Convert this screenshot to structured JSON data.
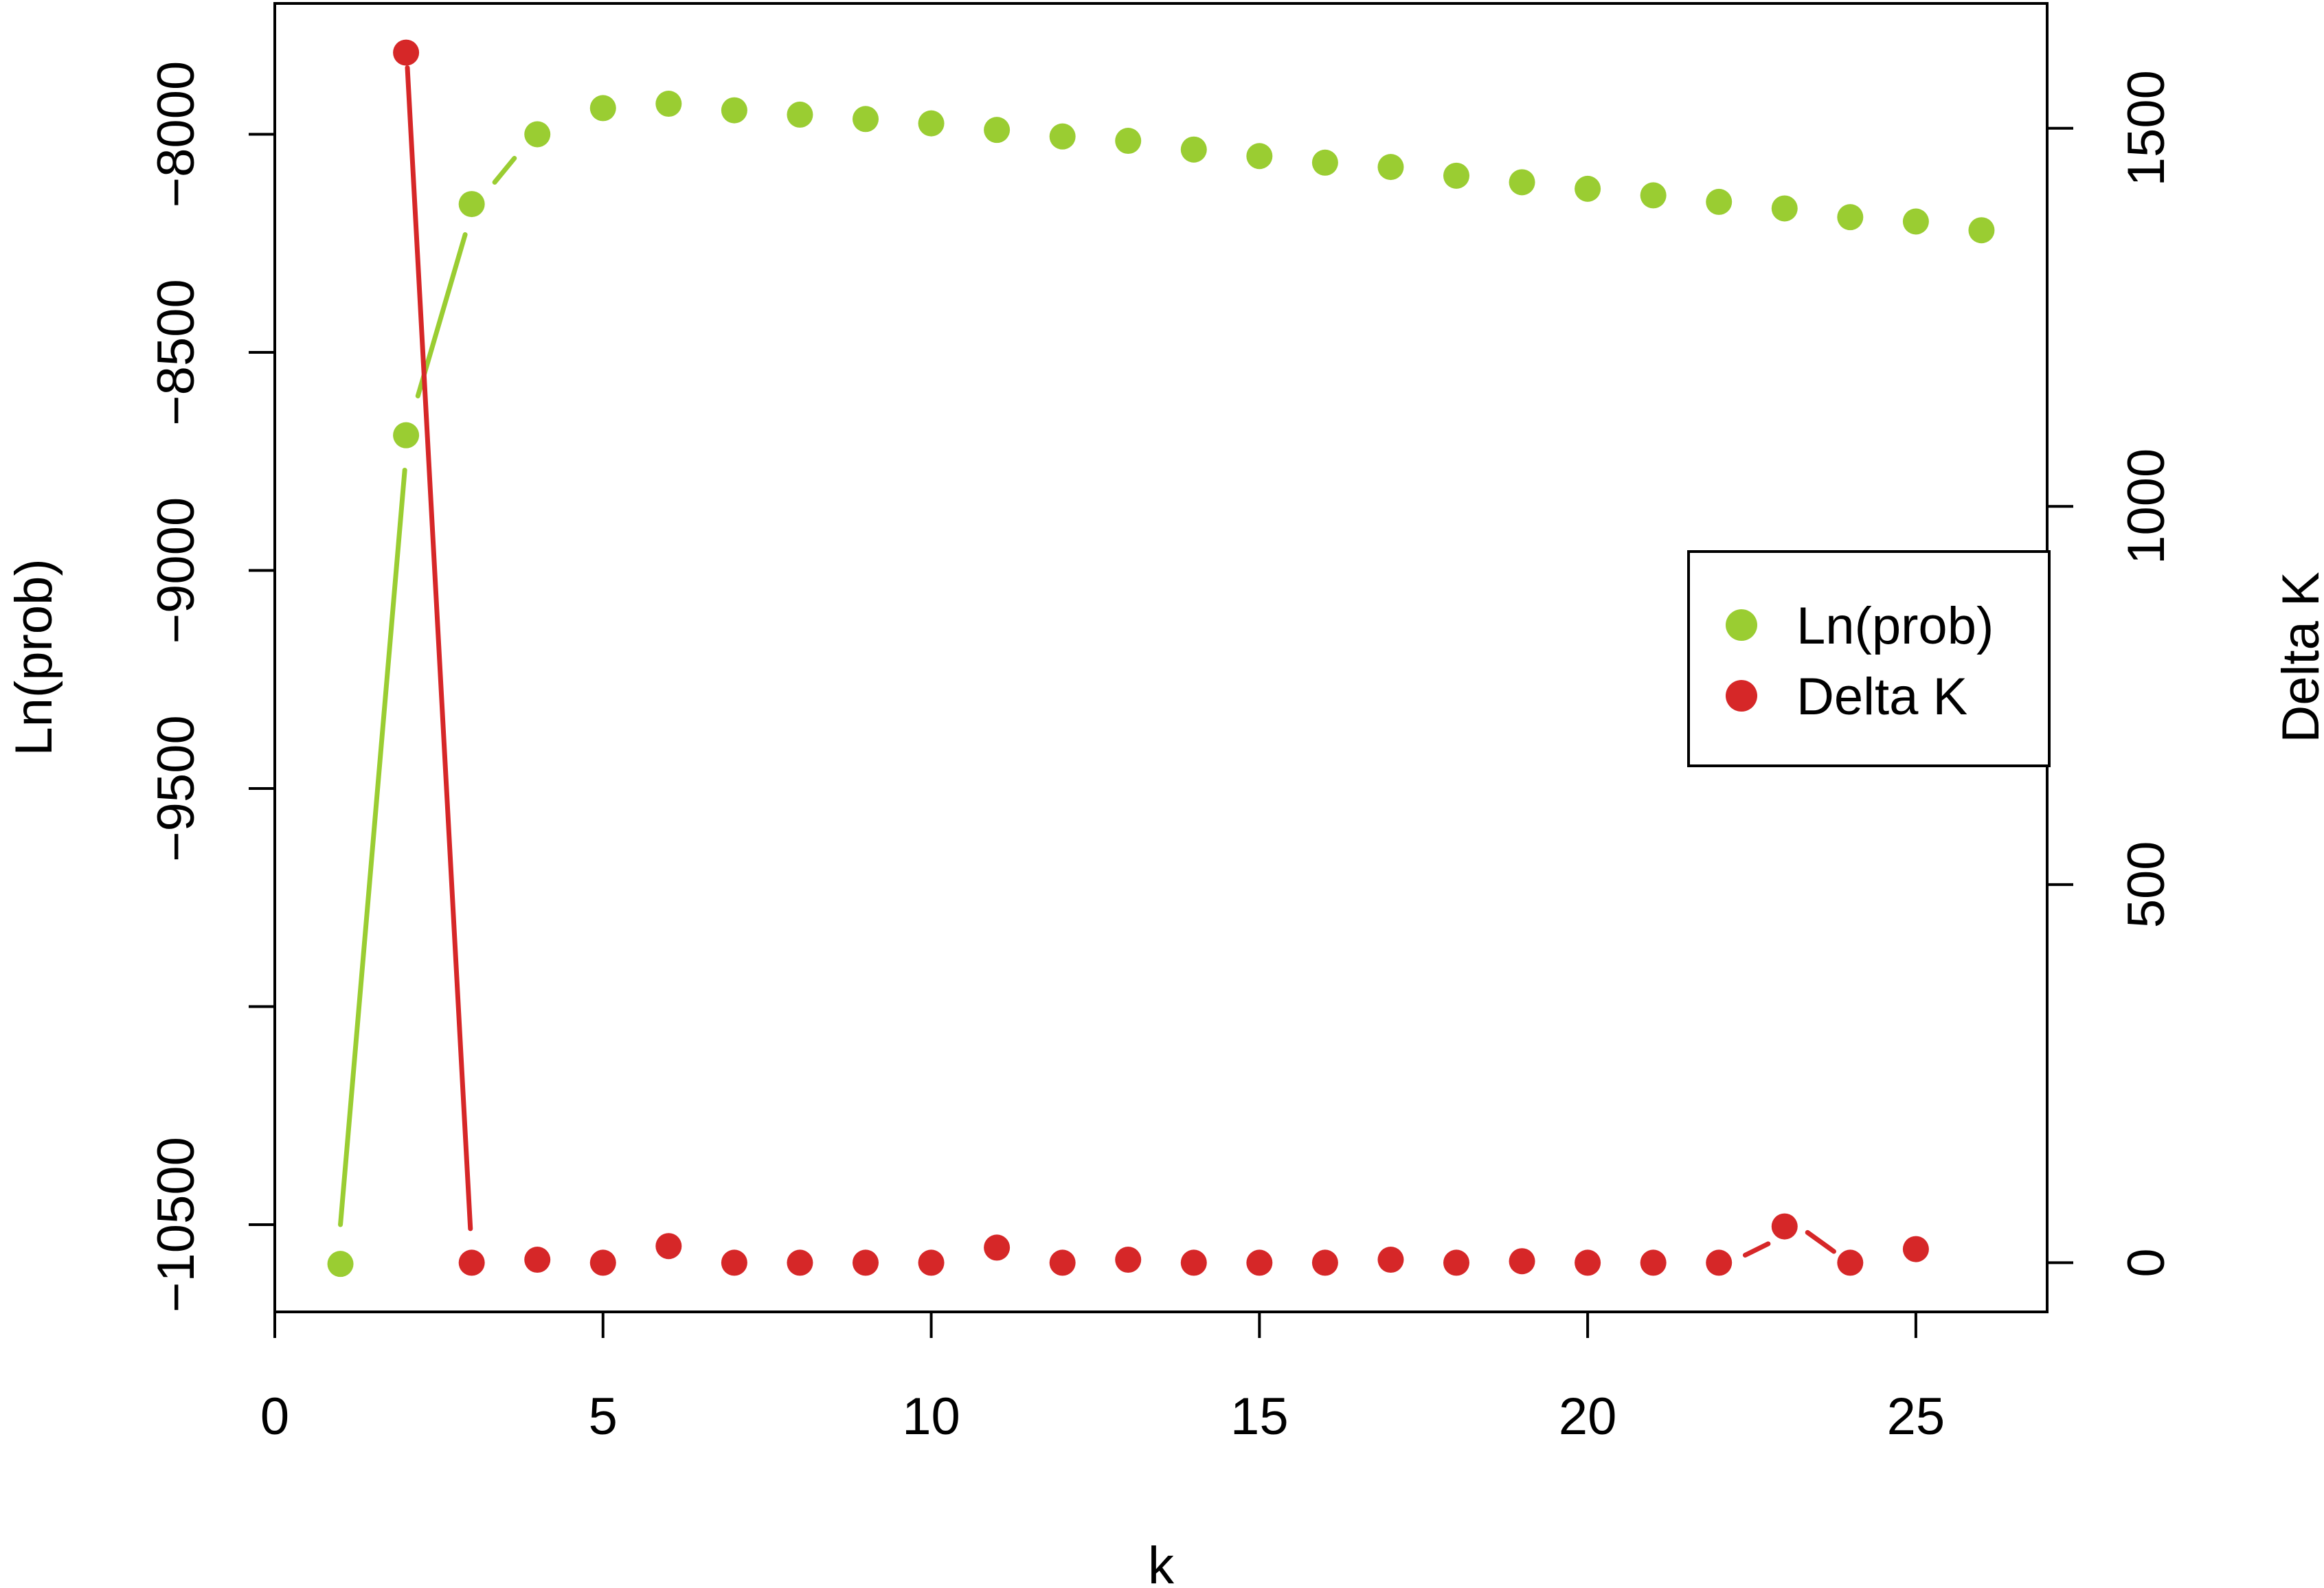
{
  "chart_data": {
    "type": "scatter",
    "xlabel": "k",
    "ylabel": "Ln(prob)",
    "y2label": "Delta K",
    "xlim": [
      0,
      27
    ],
    "ylim": [
      -10700,
      -7700
    ],
    "y2lim": [
      -65,
      1665
    ],
    "x_ticks": [
      0,
      5,
      10,
      15,
      20,
      25
    ],
    "y_ticks": [
      -10500,
      -10000,
      -9500,
      -9000,
      -8500,
      -8000
    ],
    "y_tick_labels": [
      "-10500",
      "",
      "-9500",
      "-9000",
      "-8500",
      "-8000"
    ],
    "y2_ticks": [
      0,
      500,
      1000,
      1500
    ],
    "grid": false,
    "legend_position": "right",
    "series": [
      {
        "name": "Ln(prob)",
        "axis": "left",
        "color": "#9acd32",
        "x": [
          1,
          2,
          3,
          4,
          5,
          6,
          7,
          8,
          9,
          10,
          11,
          12,
          13,
          14,
          15,
          16,
          17,
          18,
          19,
          20,
          21,
          22,
          23,
          24,
          25,
          26
        ],
        "values": [
          -10590,
          -8690,
          -8160,
          -8000,
          -7940,
          -7930,
          -7945,
          -7955,
          -7965,
          -7975,
          -7990,
          -8005,
          -8015,
          -8035,
          -8050,
          -8065,
          -8075,
          -8095,
          -8110,
          -8125,
          -8140,
          -8155,
          -8170,
          -8190,
          -8200,
          -8220
        ]
      },
      {
        "name": "Delta K",
        "axis": "right",
        "color": "#d62728",
        "x": [
          2,
          3,
          4,
          5,
          6,
          7,
          8,
          9,
          10,
          11,
          12,
          13,
          14,
          15,
          16,
          17,
          18,
          19,
          20,
          21,
          22,
          23,
          24,
          25
        ],
        "values": [
          1600,
          0,
          4,
          0,
          22,
          0,
          0,
          0,
          0,
          20,
          0,
          4,
          0,
          0,
          0,
          4,
          0,
          2,
          0,
          0,
          0,
          48,
          0,
          18
        ]
      }
    ],
    "connecting_lines": [
      {
        "axis": "left",
        "color": "#9acd32",
        "from": [
          1,
          -10500
        ],
        "to": [
          1.98,
          -8770
        ]
      },
      {
        "axis": "left",
        "color": "#9acd32",
        "from": [
          2.18,
          -8600
        ],
        "to": [
          2.9,
          -8230
        ]
      },
      {
        "axis": "left",
        "color": "#9acd32",
        "from": [
          3.35,
          -8110
        ],
        "to": [
          3.65,
          -8055
        ]
      },
      {
        "axis": "right",
        "color": "#d62728",
        "from": [
          2.02,
          1580
        ],
        "to": [
          2.98,
          45
        ]
      },
      {
        "axis": "right",
        "color": "#d62728",
        "from": [
          22.4,
          10
        ],
        "to": [
          22.75,
          25
        ]
      },
      {
        "axis": "right",
        "color": "#d62728",
        "from": [
          23.35,
          40
        ],
        "to": [
          23.75,
          15
        ]
      }
    ]
  }
}
